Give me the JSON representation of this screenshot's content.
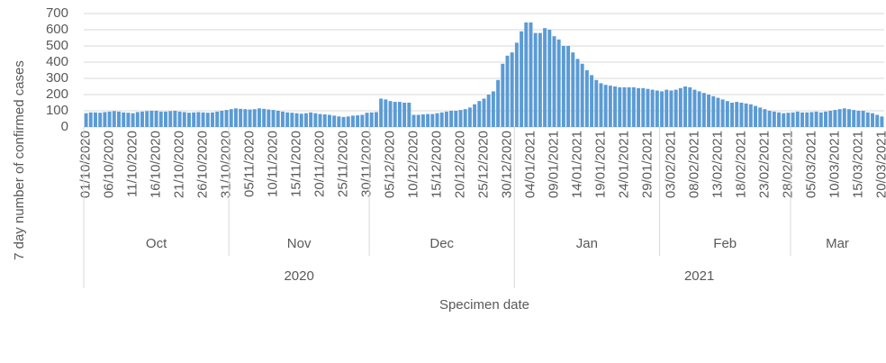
{
  "chart_data": {
    "type": "bar",
    "y_label": "7 day number of confirmed cases",
    "x_label": "Specimen date",
    "categories": [
      "01/10/2020",
      null,
      null,
      null,
      null,
      "06/10/2020",
      null,
      null,
      null,
      null,
      "11/10/2020",
      null,
      null,
      null,
      null,
      "16/10/2020",
      null,
      null,
      null,
      null,
      "21/10/2020",
      null,
      null,
      null,
      null,
      "26/10/2020",
      null,
      null,
      null,
      null,
      "31/10/2020",
      null,
      null,
      null,
      null,
      "05/11/2020",
      null,
      null,
      null,
      null,
      "10/11/2020",
      null,
      null,
      null,
      null,
      "15/11/2020",
      null,
      null,
      null,
      null,
      "20/11/2020",
      null,
      null,
      null,
      null,
      "25/11/2020",
      null,
      null,
      null,
      null,
      "30/11/2020",
      null,
      null,
      null,
      null,
      "05/12/2020",
      null,
      null,
      null,
      null,
      "10/12/2020",
      null,
      null,
      null,
      null,
      "15/12/2020",
      null,
      null,
      null,
      null,
      "20/12/2020",
      null,
      null,
      null,
      null,
      "25/12/2020",
      null,
      null,
      null,
      null,
      "30/12/2020",
      null,
      null,
      null,
      null,
      "04/01/2021",
      null,
      null,
      null,
      null,
      "09/01/2021",
      null,
      null,
      null,
      null,
      "14/01/2021",
      null,
      null,
      null,
      null,
      "19/01/2021",
      null,
      null,
      null,
      null,
      "24/01/2021",
      null,
      null,
      null,
      null,
      "29/01/2021",
      null,
      null,
      null,
      null,
      "03/02/2021",
      null,
      null,
      null,
      null,
      "08/02/2021",
      null,
      null,
      null,
      null,
      "13/02/2021",
      null,
      null,
      null,
      null,
      "18/02/2021",
      null,
      null,
      null,
      null,
      "23/02/2021",
      null,
      null,
      null,
      null,
      "28/02/2021",
      null,
      null,
      null,
      null,
      "05/03/2021",
      null,
      null,
      null,
      null,
      "10/03/2021",
      null,
      null,
      null,
      null,
      "15/03/2021",
      null,
      null,
      null,
      null,
      "20/03/2021"
    ],
    "values": [
      85,
      90,
      90,
      88,
      92,
      95,
      98,
      95,
      90,
      88,
      85,
      92,
      95,
      98,
      100,
      100,
      95,
      95,
      98,
      100,
      95,
      92,
      88,
      90,
      92,
      90,
      88,
      90,
      95,
      100,
      105,
      110,
      115,
      112,
      110,
      108,
      110,
      115,
      112,
      108,
      105,
      100,
      95,
      90,
      88,
      85,
      82,
      85,
      90,
      85,
      80,
      78,
      75,
      70,
      65,
      62,
      65,
      70,
      72,
      75,
      88,
      90,
      92,
      175,
      170,
      160,
      155,
      155,
      150,
      150,
      75,
      75,
      78,
      80,
      80,
      85,
      90,
      95,
      100,
      100,
      105,
      110,
      120,
      140,
      160,
      175,
      200,
      220,
      290,
      390,
      440,
      460,
      520,
      590,
      645,
      645,
      580,
      580,
      610,
      600,
      560,
      540,
      500,
      500,
      460,
      420,
      390,
      350,
      320,
      290,
      270,
      260,
      255,
      250,
      245,
      245,
      245,
      245,
      240,
      240,
      235,
      230,
      225,
      220,
      230,
      225,
      230,
      240,
      250,
      245,
      230,
      220,
      210,
      200,
      190,
      180,
      170,
      160,
      150,
      155,
      150,
      145,
      140,
      130,
      120,
      110,
      100,
      95,
      90,
      85,
      88,
      90,
      95,
      90,
      90,
      92,
      95,
      90,
      95,
      100,
      105,
      110,
      115,
      110,
      105,
      100,
      100,
      90,
      85,
      75,
      65
    ],
    "months": [
      {
        "name": "Oct",
        "span": 31
      },
      {
        "name": "Nov",
        "span": 30
      },
      {
        "name": "Dec",
        "span": 31
      },
      {
        "name": "Jan",
        "span": 31
      },
      {
        "name": "Feb",
        "span": 28
      },
      {
        "name": "Mar",
        "span": 20
      }
    ],
    "years": [
      {
        "name": "2020",
        "span": 92
      },
      {
        "name": "2021",
        "span": 79
      }
    ],
    "color": "#5b9bd5",
    "ylim": [
      0,
      700
    ],
    "yticks": [
      0,
      100,
      200,
      300,
      400,
      500,
      600,
      700
    ],
    "grid": true
  }
}
